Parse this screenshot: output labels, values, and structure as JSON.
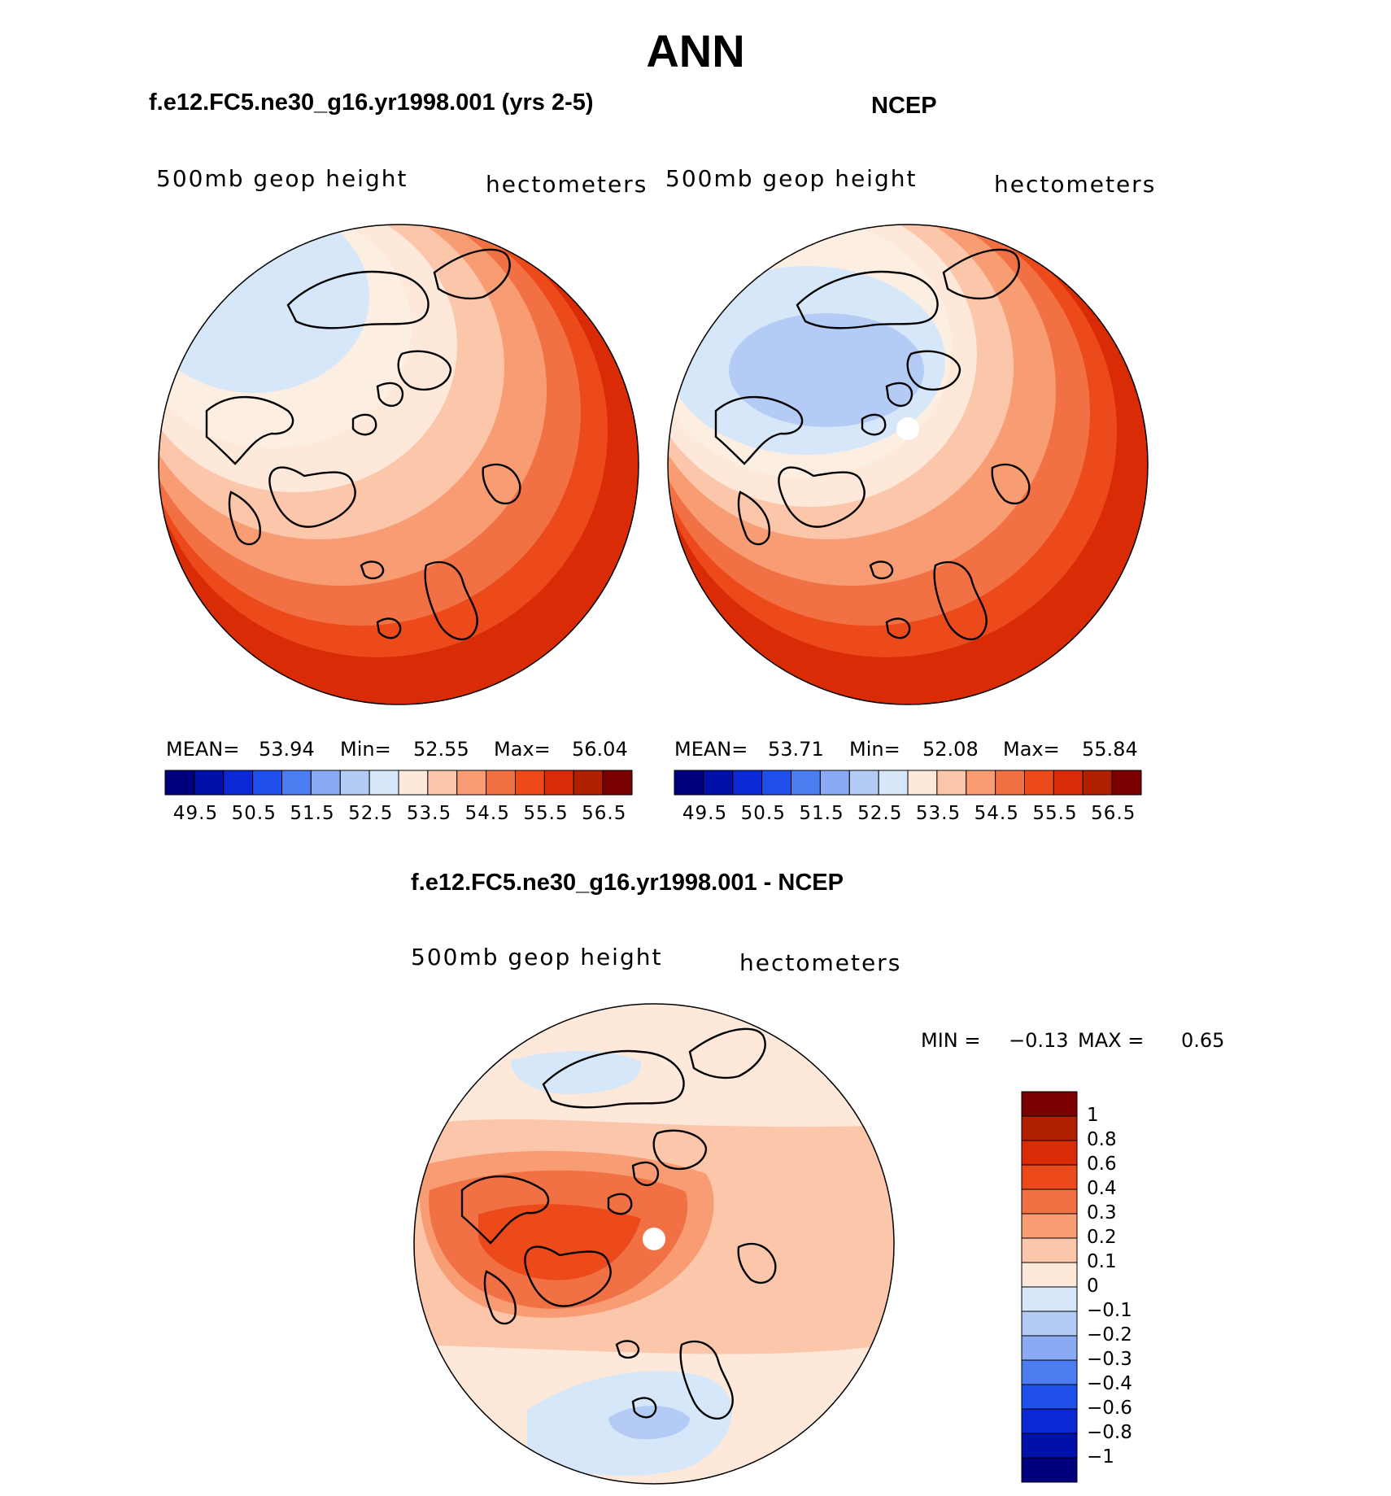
{
  "page_title": "ANN",
  "chart_data": [
    {
      "type": "heatmap",
      "subtype": "polar-stereographic-map",
      "title": "f.e12.FC5.ne30_g16.yr1998.001 (yrs 2-5)",
      "left_string": "500mb geop height",
      "right_string": "hectometers",
      "stats": {
        "mean_label": "MEAN=",
        "mean": "53.94",
        "min_label": "Min=",
        "min": "52.55",
        "max_label": "Max=",
        "max": "56.04"
      },
      "bands": [
        56.5,
        56.0,
        55.5,
        55.0,
        54.5,
        54.0,
        53.5,
        53.0,
        52.5
      ],
      "hole_at_pole": false
    },
    {
      "type": "heatmap",
      "subtype": "polar-stereographic-map",
      "title": "NCEP",
      "left_string": "500mb geop height",
      "right_string": "hectometers",
      "stats": {
        "mean_label": "MEAN=",
        "mean": "53.71",
        "min_label": "Min=",
        "min": "52.08",
        "max_label": "Max=",
        "max": "55.84"
      },
      "bands": [
        56.0,
        55.5,
        55.0,
        54.5,
        54.0,
        53.5,
        53.0,
        52.5,
        52.0
      ],
      "hole_at_pole": true
    },
    {
      "type": "heatmap",
      "subtype": "polar-stereographic-difference-map",
      "title": "f.e12.FC5.ne30_g16.yr1998.001 - NCEP",
      "left_string": "500mb geop height",
      "right_string": "hectometers",
      "stats": {
        "min_label": "MIN =",
        "min": "−0.13",
        "max_label": "MAX =",
        "max": "0.65"
      },
      "hole_at_pole": true
    }
  ],
  "colorbar_abs": {
    "colors": [
      "#00007f",
      "#0010a8",
      "#0a28d4",
      "#1f50ec",
      "#4b7cf0",
      "#8aaaf4",
      "#b4cbf6",
      "#d5e7f9",
      "#fde8d9",
      "#fcc6ab",
      "#f89c74",
      "#f27144",
      "#ec4a1b",
      "#d92c06",
      "#b01f00",
      "#7a0000"
    ],
    "ticks": [
      "49.5",
      "50.5",
      "51.5",
      "52.5",
      "53.5",
      "54.5",
      "55.5",
      "56.5"
    ]
  },
  "colorbar_diff": {
    "colors": [
      "#7a0000",
      "#b01f00",
      "#d92c06",
      "#ec4a1b",
      "#f27144",
      "#f89c74",
      "#fcc6ab",
      "#fde8d9",
      "#d5e7f9",
      "#b4cbf6",
      "#8aaaf4",
      "#4b7cf0",
      "#1f50ec",
      "#0a28d4",
      "#0010a8",
      "#00007f"
    ],
    "labels": [
      "1",
      "0.8",
      "0.6",
      "0.4",
      "0.3",
      "0.2",
      "0.1",
      "0",
      "−0.1",
      "−0.2",
      "−0.3",
      "−0.4",
      "−0.6",
      "−0.8",
      "−1"
    ]
  },
  "colors": {
    "band_56_5": "#d92c06",
    "band_56_0": "#ec4a1b",
    "band_55_5": "#f27144",
    "band_55_0": "#f89c74",
    "band_54_5": "#fcc6ab",
    "band_54_0": "#fde8d9",
    "band_53_5": "#fdeee2",
    "band_53_0": "#d5e7f9",
    "band_52_5": "#b4cbf6",
    "outline": "#000000"
  }
}
